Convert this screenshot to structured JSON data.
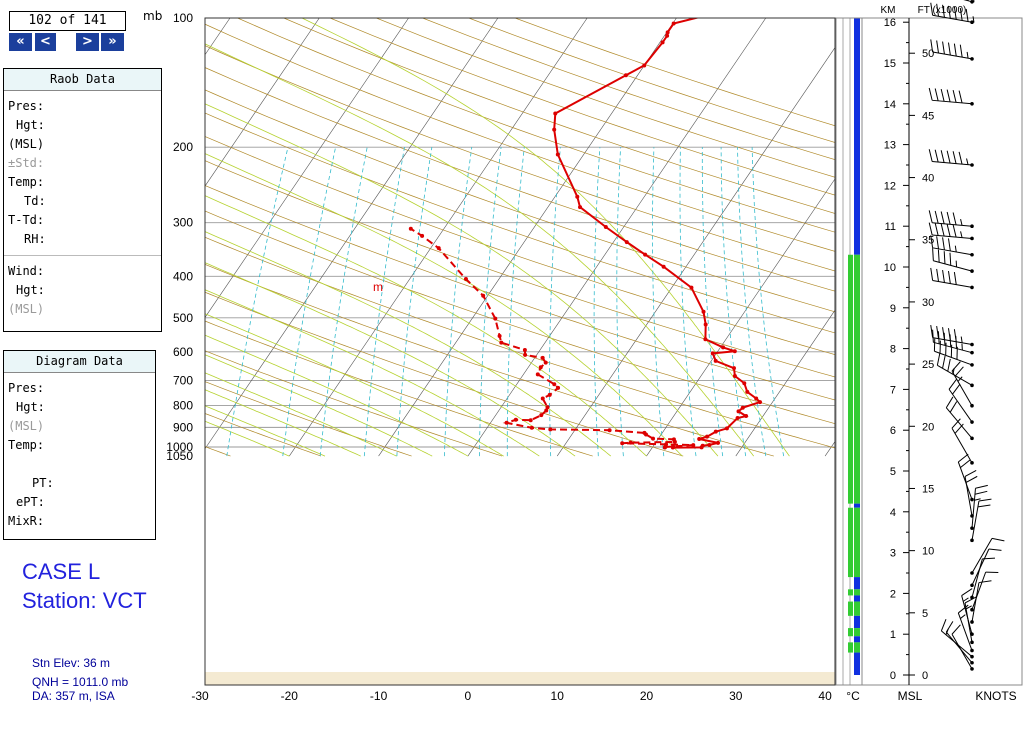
{
  "navigator": {
    "counter": "102 of 141",
    "first_label": "«",
    "prev_label": "<",
    "next_label": ">",
    "last_label": "»"
  },
  "pressure_unit": "mb",
  "raob_panel": {
    "title": "Raob Data",
    "fields": [
      "Pres:",
      "Hgt:",
      "(MSL)",
      "±Std:",
      "Temp:",
      "Td:",
      "T-Td:",
      "RH:"
    ],
    "wind_fields": [
      "Wind:",
      "Hgt:",
      "(MSL)"
    ]
  },
  "diagram_panel": {
    "title": "Diagram Data",
    "fields": [
      "Pres:",
      "Hgt:",
      "(MSL)",
      "Temp:",
      "",
      "PT:",
      "ePT:",
      "MixR:"
    ]
  },
  "case_label": "CASE L",
  "station_label": "Station: VCT",
  "station_info": {
    "elevation": "Stn Elev: 36 m",
    "qnh": "QNH = 1011.0 mb",
    "da": "DA: 357 m, ISA"
  },
  "colors": {
    "temperature": "#dd0000",
    "dewpoint": "#dd0000",
    "isobar": "#9a9a9a",
    "isotherm": "#555555",
    "dry_adiabat": "#b08a2a",
    "moist_adiabat": "#b6d230",
    "mixing_ratio": "#33bbcc",
    "column_blue": "#1030e0",
    "column_green": "#33cc33"
  },
  "km_axis": {
    "title": "KM",
    "ticks": [
      "16",
      "15",
      "14",
      "13",
      "12",
      "11",
      "10",
      "9",
      "8",
      "7",
      "6",
      "5",
      "4",
      "3",
      "2",
      "1",
      "0"
    ]
  },
  "ft_axis": {
    "title": "FT (x1000)",
    "ticks": [
      "50",
      "45",
      "40",
      "35",
      "30",
      "25",
      "20",
      "15",
      "10",
      "5",
      "0"
    ]
  },
  "bottom_labels": {
    "celsius": "°C",
    "msl": "MSL",
    "knots": "KNOTS"
  },
  "annotation_m": "m",
  "chart_data": {
    "type": "line",
    "title": "",
    "xlabel": "°C",
    "ylabel": "mb",
    "x_ticks": [
      -30,
      -20,
      -10,
      0,
      10,
      20,
      30,
      40
    ],
    "xlim": [
      -30,
      40
    ],
    "y_ticks": [
      100,
      200,
      300,
      400,
      500,
      600,
      700,
      800,
      900,
      1000,
      1050
    ],
    "ylim": [
      1050,
      100
    ],
    "y_scale": "log",
    "series": [
      {
        "name": "Temperature",
        "points": [
          [
            22.3,
            1000
          ],
          [
            22.3,
            1003
          ],
          [
            25.5,
            1002
          ],
          [
            25.5,
            993
          ],
          [
            26.2,
            989
          ],
          [
            27.0,
            978
          ],
          [
            24.6,
            958
          ],
          [
            25.3,
            946
          ],
          [
            25.9,
            921
          ],
          [
            26.9,
            905
          ],
          [
            27.3,
            856
          ],
          [
            28.1,
            847
          ],
          [
            26.9,
            826
          ],
          [
            27.1,
            810
          ],
          [
            28.6,
            786
          ],
          [
            27.9,
            771
          ],
          [
            26.4,
            744
          ],
          [
            25.4,
            710
          ],
          [
            23.8,
            683
          ],
          [
            23.1,
            655
          ],
          [
            20.5,
            630
          ],
          [
            19.6,
            605
          ],
          [
            21.9,
            598
          ],
          [
            20.3,
            586
          ],
          [
            17.7,
            561
          ],
          [
            16.6,
            518
          ],
          [
            15.4,
            484
          ],
          [
            12.2,
            425
          ],
          [
            7.5,
            380
          ],
          [
            4.5,
            356
          ],
          [
            1.5,
            333
          ],
          [
            -2.0,
            307
          ],
          [
            -6.4,
            276
          ],
          [
            -7.5,
            261
          ],
          [
            -12.9,
            208
          ],
          [
            -15.2,
            182
          ],
          [
            -16.3,
            167
          ],
          [
            -11.3,
            136
          ],
          [
            -10.0,
            129
          ],
          [
            -9.7,
            114
          ],
          [
            -9.7,
            110
          ],
          [
            -9.9,
            108
          ],
          [
            -9.9,
            103
          ],
          [
            -5.7,
            97
          ],
          [
            -4.5,
            95
          ]
        ]
      },
      {
        "name": "Dewpoint",
        "points": [
          [
            21.4,
            1003
          ],
          [
            21.4,
            1000
          ],
          [
            24.4,
            990
          ],
          [
            21.3,
            986
          ],
          [
            16.3,
            980
          ],
          [
            17.2,
            977
          ],
          [
            22.1,
            973
          ],
          [
            21.8,
            960
          ],
          [
            19.4,
            956
          ],
          [
            18.3,
            935
          ],
          [
            18.0,
            927
          ],
          [
            13.9,
            914
          ],
          [
            7.2,
            910
          ],
          [
            5.0,
            902
          ],
          [
            1.8,
            878
          ],
          [
            2.6,
            864
          ],
          [
            4.3,
            866
          ],
          [
            5.1,
            843
          ],
          [
            5.3,
            822
          ],
          [
            5.2,
            808
          ],
          [
            4.0,
            771
          ],
          [
            4.5,
            756
          ],
          [
            4.9,
            728
          ],
          [
            4.2,
            714
          ],
          [
            1.6,
            677
          ],
          [
            1.4,
            652
          ],
          [
            1.6,
            636
          ],
          [
            0.9,
            620
          ],
          [
            -1.3,
            610
          ],
          [
            -1.7,
            594
          ],
          [
            -4.9,
            571
          ],
          [
            -5.6,
            551
          ],
          [
            -7.4,
            502
          ],
          [
            -10.5,
            444
          ],
          [
            -13.7,
            406
          ],
          [
            -19.1,
            344
          ],
          [
            -21.9,
            322
          ],
          [
            -23.7,
            310
          ]
        ]
      }
    ],
    "km_ticks": [
      0,
      1,
      2,
      3,
      4,
      5,
      6,
      7,
      8,
      9,
      10,
      11,
      12,
      13,
      14,
      15,
      16
    ],
    "ft_ticks_x1000": [
      0,
      5,
      10,
      15,
      20,
      25,
      30,
      35,
      40,
      45,
      50
    ],
    "column_segments": [
      {
        "color": "blue",
        "from_km": 10.3,
        "to_km": 16.9
      },
      {
        "color": "green",
        "from_km": 4.2,
        "to_km": 10.3
      },
      {
        "color": "blue",
        "from_km": 4.1,
        "to_km": 4.2
      },
      {
        "color": "green",
        "from_km": 2.4,
        "to_km": 4.1
      },
      {
        "color": "blue",
        "from_km": 2.1,
        "to_km": 2.4
      },
      {
        "color": "green",
        "from_km": 1.95,
        "to_km": 2.1
      },
      {
        "color": "blue",
        "from_km": 1.8,
        "to_km": 1.95
      },
      {
        "color": "green",
        "from_km": 1.45,
        "to_km": 1.8
      },
      {
        "color": "blue",
        "from_km": 1.15,
        "to_km": 1.45
      },
      {
        "color": "green",
        "from_km": 0.95,
        "to_km": 1.15
      },
      {
        "color": "blue",
        "from_km": 0.8,
        "to_km": 0.95
      },
      {
        "color": "green",
        "from_km": 0.55,
        "to_km": 0.8
      },
      {
        "color": "blue",
        "from_km": 0.0,
        "to_km": 0.55
      }
    ],
    "wind_barb_heights_km": [
      0.15,
      0.3,
      0.45,
      0.6,
      0.8,
      1.0,
      1.3,
      1.6,
      1.9,
      2.2,
      2.5,
      3.3,
      3.6,
      3.9,
      4.3,
      5.2,
      5.8,
      6.2,
      6.6,
      7.1,
      7.6,
      7.9,
      8.1,
      9.5,
      9.9,
      10.3,
      10.7,
      11.0,
      12.5,
      14.0,
      15.1,
      16.0,
      16.5,
      16.8
    ],
    "wind_barb_directions_deg": [
      330,
      320,
      310,
      340,
      350,
      345,
      10,
      20,
      15,
      25,
      30,
      10,
      5,
      350,
      340,
      330,
      320,
      325,
      330,
      300,
      290,
      285,
      280,
      280,
      285,
      280,
      275,
      275,
      275,
      275,
      280,
      280,
      285,
      290
    ],
    "wind_barb_speeds_kt": [
      10,
      10,
      15,
      15,
      15,
      15,
      10,
      10,
      10,
      10,
      10,
      20,
      25,
      20,
      20,
      20,
      20,
      20,
      25,
      35,
      50,
      55,
      55,
      50,
      45,
      45,
      55,
      55,
      65,
      60,
      65,
      75,
      75,
      70
    ]
  }
}
